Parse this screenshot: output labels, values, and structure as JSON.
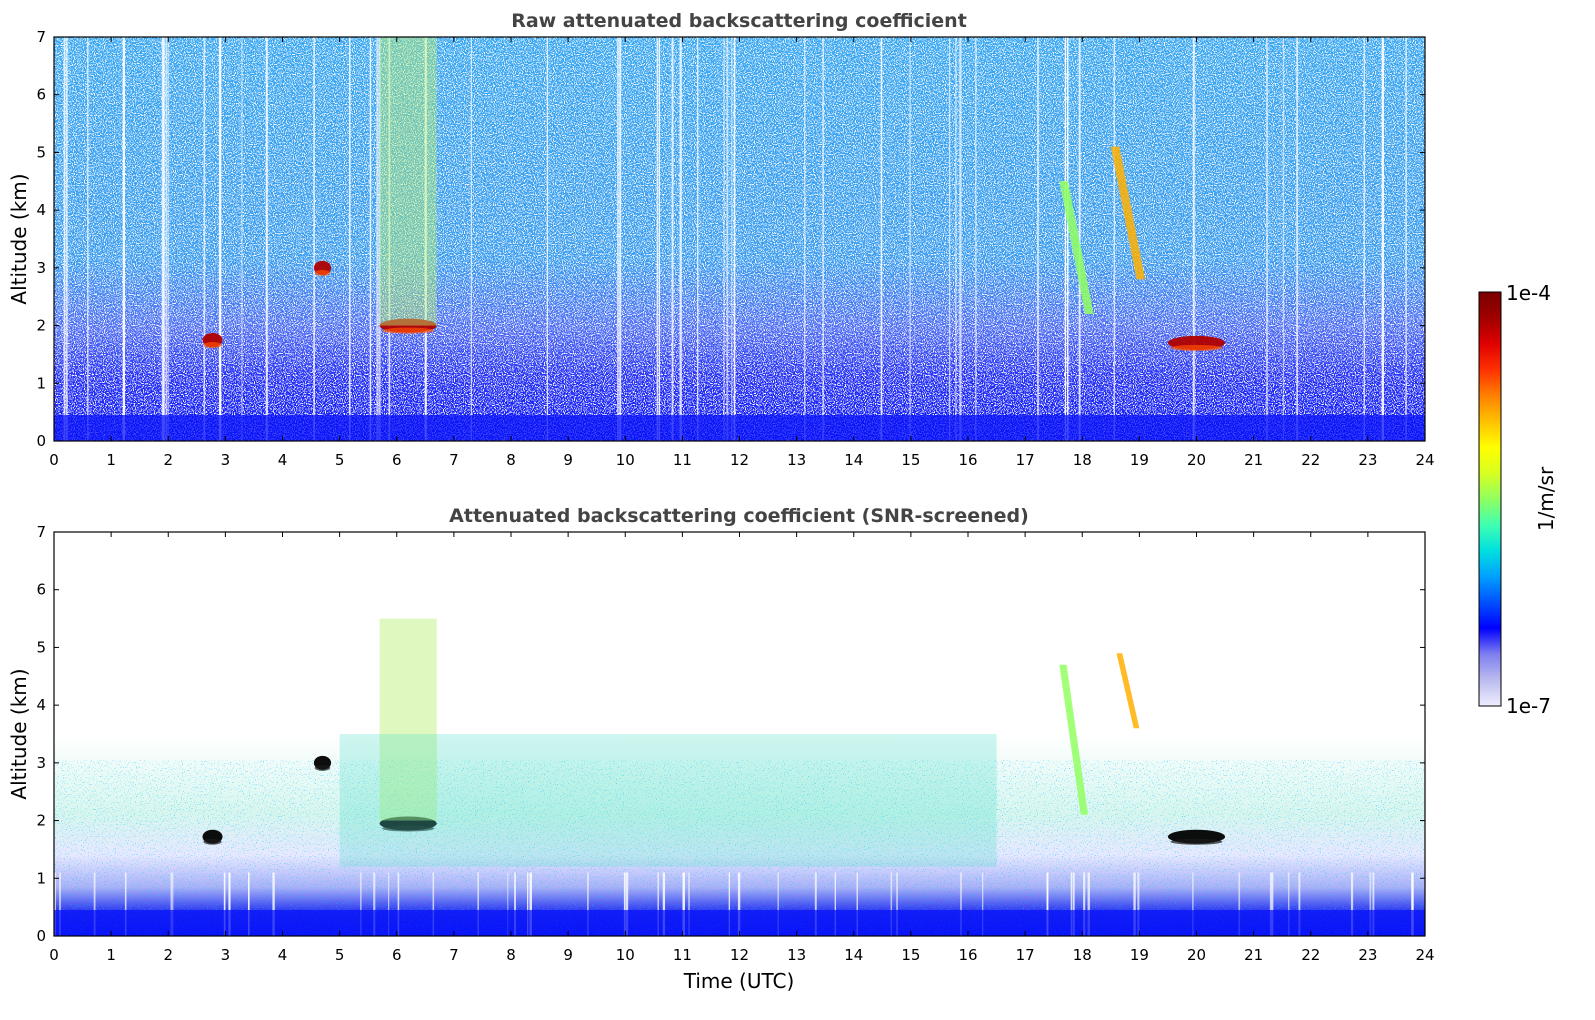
{
  "chart_data": [
    {
      "type": "heatmap",
      "title": "Raw attenuated backscattering coefficient",
      "xlabel": "",
      "ylabel": "Altitude (km)",
      "xlim": [
        0,
        24
      ],
      "ylim": [
        0,
        7
      ],
      "xticks": [
        "0",
        "1",
        "2",
        "3",
        "4",
        "5",
        "6",
        "7",
        "8",
        "9",
        "10",
        "11",
        "12",
        "13",
        "14",
        "15",
        "16",
        "17",
        "18",
        "19",
        "20",
        "21",
        "22",
        "23",
        "24"
      ],
      "yticks": [
        "0",
        "1",
        "2",
        "3",
        "4",
        "5",
        "6",
        "7"
      ],
      "features": [
        {
          "kind": "cloud",
          "time_range": [
            2.6,
            2.95
          ],
          "altitude_km": 1.75,
          "level": "high"
        },
        {
          "kind": "cloud",
          "time_range": [
            4.55,
            4.85
          ],
          "altitude_km": 3.0,
          "level": "high"
        },
        {
          "kind": "cloud",
          "time_range": [
            5.7,
            6.7
          ],
          "altitude_km": 2.0,
          "level": "high"
        },
        {
          "kind": "plume",
          "time_range": [
            5.7,
            6.7
          ],
          "altitude_range_km": [
            2.0,
            7.0
          ],
          "level": "moderate"
        },
        {
          "kind": "virga",
          "time_range": [
            17.6,
            18.2
          ],
          "altitude_range_km": [
            2.2,
            4.5
          ],
          "level": "moderate"
        },
        {
          "kind": "virga",
          "time_range": [
            18.5,
            19.1
          ],
          "altitude_range_km": [
            2.8,
            5.1
          ],
          "level": "high"
        },
        {
          "kind": "cloud",
          "time_range": [
            19.5,
            20.5
          ],
          "altitude_km": 1.7,
          "level": "high"
        },
        {
          "kind": "boundary_layer",
          "time_range": [
            0,
            24
          ],
          "altitude_range_km": [
            0,
            1.0
          ],
          "level": "low"
        }
      ]
    },
    {
      "type": "heatmap",
      "title": "Attenuated backscattering coefficient (SNR-screened)",
      "xlabel": "Time (UTC)",
      "ylabel": "Altitude (km)",
      "xlim": [
        0,
        24
      ],
      "ylim": [
        0,
        7
      ],
      "xticks": [
        "0",
        "1",
        "2",
        "3",
        "4",
        "5",
        "6",
        "7",
        "8",
        "9",
        "10",
        "11",
        "12",
        "13",
        "14",
        "15",
        "16",
        "17",
        "18",
        "19",
        "20",
        "21",
        "22",
        "23",
        "24"
      ],
      "yticks": [
        "0",
        "1",
        "2",
        "3",
        "4",
        "5",
        "6",
        "7"
      ],
      "features": [
        {
          "kind": "cloud",
          "time_range": [
            2.6,
            2.95
          ],
          "altitude_km": 1.72,
          "level": "saturated"
        },
        {
          "kind": "cloud",
          "time_range": [
            4.55,
            4.85
          ],
          "altitude_km": 3.0,
          "level": "saturated"
        },
        {
          "kind": "cloud",
          "time_range": [
            5.7,
            6.7
          ],
          "altitude_km": 1.95,
          "level": "saturated"
        },
        {
          "kind": "plume",
          "time_range": [
            5.7,
            6.7
          ],
          "altitude_range_km": [
            2.0,
            5.5
          ],
          "level": "moderate"
        },
        {
          "kind": "virga",
          "time_range": [
            17.6,
            18.1
          ],
          "altitude_range_km": [
            2.1,
            4.7
          ],
          "level": "moderate"
        },
        {
          "kind": "virga",
          "time_range": [
            18.6,
            19.0
          ],
          "altitude_range_km": [
            3.6,
            4.9
          ],
          "level": "high"
        },
        {
          "kind": "cloud",
          "time_range": [
            19.5,
            20.5
          ],
          "altitude_km": 1.72,
          "level": "saturated"
        },
        {
          "kind": "aerosol_layer",
          "time_range": [
            5,
            16.5
          ],
          "altitude_range_km": [
            1.2,
            3.5
          ],
          "level": "moderate"
        },
        {
          "kind": "boundary_layer",
          "time_range": [
            0,
            24
          ],
          "altitude_range_km": [
            0,
            1.0
          ],
          "level": "low"
        }
      ]
    }
  ],
  "colorbar": {
    "label": "1/m/sr",
    "max_label": "1e-4",
    "min_label": "1e-7",
    "colormap": [
      "#eeeeff",
      "#bbbbee",
      "#7f7ff0",
      "#0000ff",
      "#0050ff",
      "#00a0ff",
      "#00e0e0",
      "#40ffb0",
      "#90ff60",
      "#d8ff20",
      "#ffff00",
      "#ffc000",
      "#ff8000",
      "#ff3000",
      "#e00000",
      "#a00000",
      "#7a0000"
    ]
  },
  "colors": {
    "saturated": "#000000",
    "title_text": "#444444"
  }
}
